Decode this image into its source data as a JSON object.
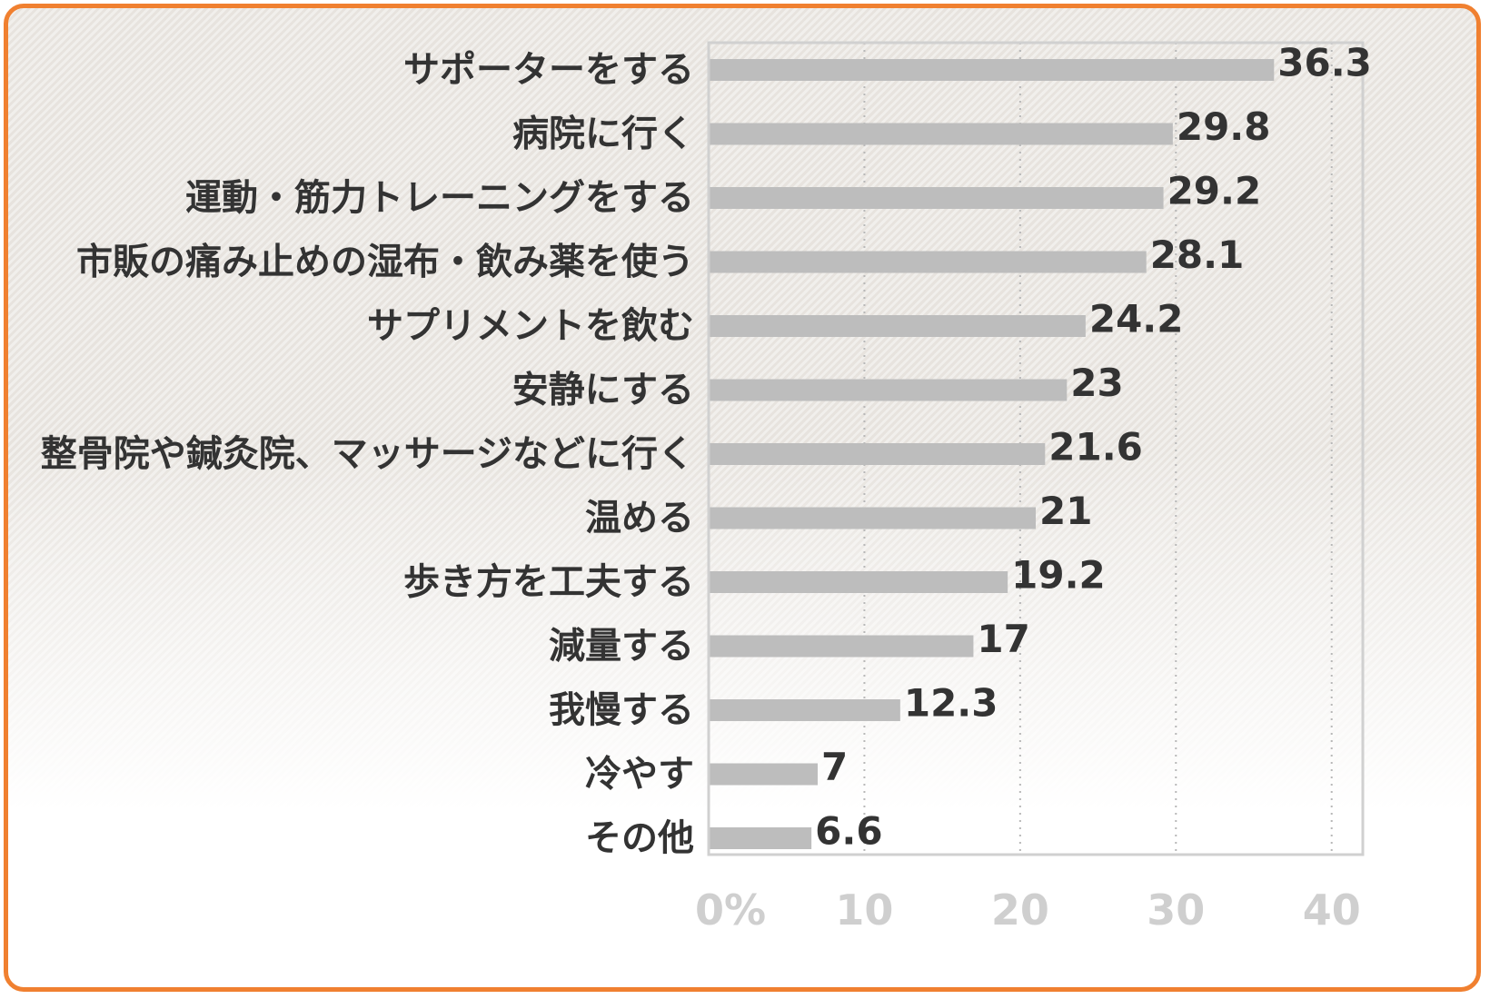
{
  "chart_data": {
    "type": "bar",
    "orientation": "horizontal",
    "categories": [
      "サポーターをする",
      "病院に行く",
      "運動・筋力トレーニングをする",
      "市販の痛み止めの湿布・飲み薬を使う",
      "サプリメントを飲む",
      "安静にする",
      "整骨院や鍼灸院、マッサージなどに行く",
      "温める",
      "歩き方を工夫する",
      "減量する",
      "我慢する",
      "冷やす",
      "その他"
    ],
    "values": [
      36.3,
      29.8,
      29.2,
      28.1,
      24.2,
      23,
      21.6,
      21,
      19.2,
      17,
      12.3,
      7,
      6.6
    ],
    "value_labels": [
      "36.3",
      "29.8",
      "29.2",
      "28.1",
      "24.2",
      "23",
      "21.6",
      "21",
      "19.2",
      "17",
      "12.3",
      "7",
      "6.6"
    ],
    "xlim": [
      0,
      42
    ],
    "ticks": [
      0,
      10,
      20,
      30,
      40
    ],
    "tick_labels": [
      "0%",
      "10",
      "20",
      "30",
      "40"
    ],
    "grid": "vertical dotted",
    "bar_color": "#bdbdbd",
    "frame_color": "#f08030"
  }
}
